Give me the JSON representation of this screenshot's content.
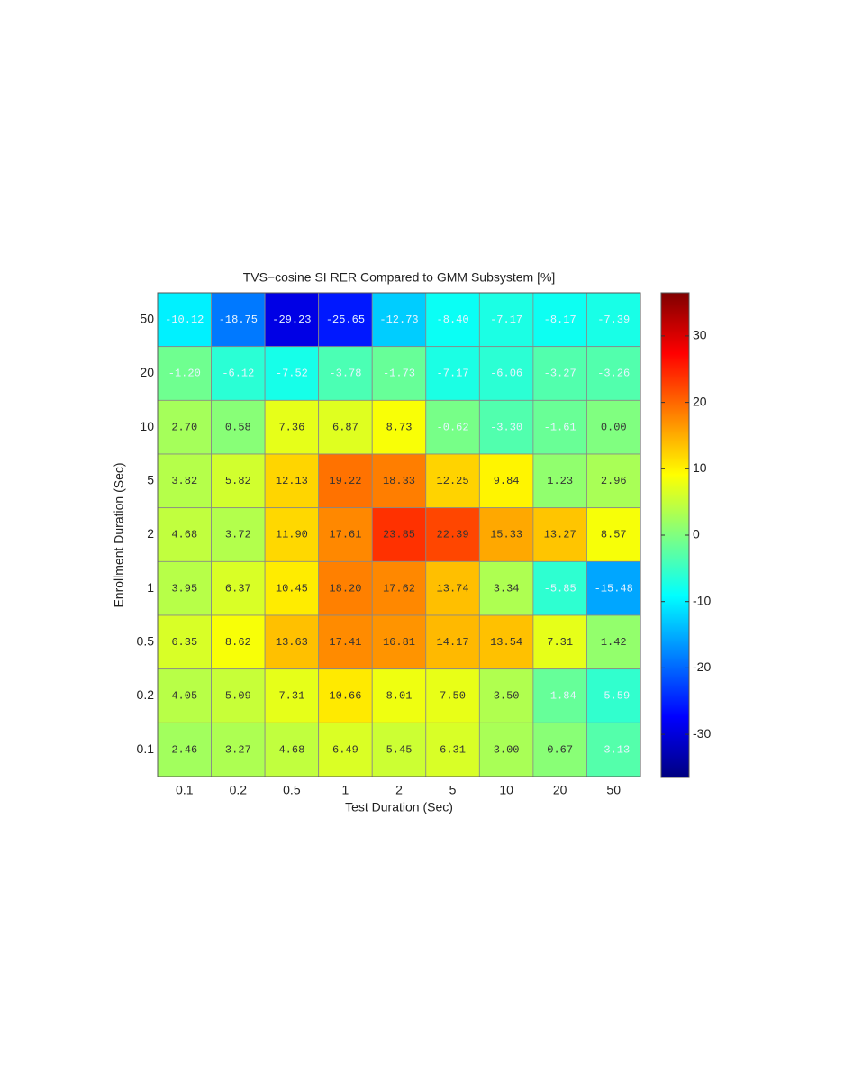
{
  "chart_data": {
    "type": "heatmap",
    "title": "TVS−cosine SI RER Compared to GMM Subsystem [%]",
    "xlabel": "Test Duration (Sec)",
    "ylabel": "Enrollment Duration (Sec)",
    "x_categories": [
      "0.1",
      "0.2",
      "0.5",
      "1",
      "2",
      "5",
      "10",
      "20",
      "50"
    ],
    "y_categories": [
      "50",
      "20",
      "10",
      "5",
      "2",
      "1",
      "0.5",
      "0.2",
      "0.1"
    ],
    "values": [
      [
        -10.12,
        -18.75,
        -29.23,
        -25.65,
        -12.73,
        -8.4,
        -7.17,
        -8.17,
        -7.39
      ],
      [
        -1.2,
        -6.12,
        -7.52,
        -3.78,
        -1.73,
        -7.17,
        -6.06,
        -3.27,
        -3.26
      ],
      [
        2.7,
        0.58,
        7.36,
        6.87,
        8.73,
        -0.62,
        -3.3,
        -1.61,
        0.0
      ],
      [
        3.82,
        5.82,
        12.13,
        19.22,
        18.33,
        12.25,
        9.84,
        1.23,
        2.96
      ],
      [
        4.68,
        3.72,
        11.9,
        17.61,
        23.85,
        22.39,
        15.33,
        13.27,
        8.57
      ],
      [
        3.95,
        6.37,
        10.45,
        18.2,
        17.62,
        13.74,
        3.34,
        -5.85,
        -15.48
      ],
      [
        6.35,
        8.62,
        13.63,
        17.41,
        16.81,
        14.17,
        13.54,
        7.31,
        1.42
      ],
      [
        4.05,
        5.09,
        7.31,
        10.66,
        8.01,
        7.5,
        3.5,
        -1.84,
        -5.59
      ],
      [
        2.46,
        3.27,
        4.68,
        6.49,
        5.45,
        6.31,
        3.0,
        0.67,
        -3.13
      ]
    ],
    "value_labels": [
      [
        "-10.12",
        "-18.75",
        "-29.23",
        "-25.65",
        "-12.73",
        "-8.40",
        "-7.17",
        "-8.17",
        "-7.39"
      ],
      [
        "-1.20",
        "-6.12",
        "-7.52",
        "-3.78",
        "-1.73",
        "-7.17",
        "-6.06",
        "-3.27",
        "-3.26"
      ],
      [
        "2.70",
        "0.58",
        "7.36",
        "6.87",
        "8.73",
        "-0.62",
        "-3.30",
        "-1.61",
        "0.00"
      ],
      [
        "3.82",
        "5.82",
        "12.13",
        "19.22",
        "18.33",
        "12.25",
        "9.84",
        "1.23",
        "2.96"
      ],
      [
        "4.68",
        "3.72",
        "11.90",
        "17.61",
        "23.85",
        "22.39",
        "15.33",
        "13.27",
        "8.57"
      ],
      [
        "3.95",
        "6.37",
        "10.45",
        "18.20",
        "17.62",
        "13.74",
        "3.34",
        "-5.85",
        "-15.48"
      ],
      [
        "6.35",
        "8.62",
        "13.63",
        "17.41",
        "16.81",
        "14.17",
        "13.54",
        "7.31",
        "1.42"
      ],
      [
        "4.05",
        "5.09",
        "7.31",
        "10.66",
        "8.01",
        "7.50",
        "3.50",
        "-1.84",
        "-5.59"
      ],
      [
        "2.46",
        "3.27",
        "4.68",
        "6.49",
        "5.45",
        "6.31",
        "3.00",
        "0.67",
        "-3.13"
      ]
    ],
    "colormap": "jet",
    "clim": [
      -36.5,
      36.5
    ],
    "cticks": [
      -30,
      -20,
      -10,
      0,
      10,
      20,
      30
    ]
  }
}
